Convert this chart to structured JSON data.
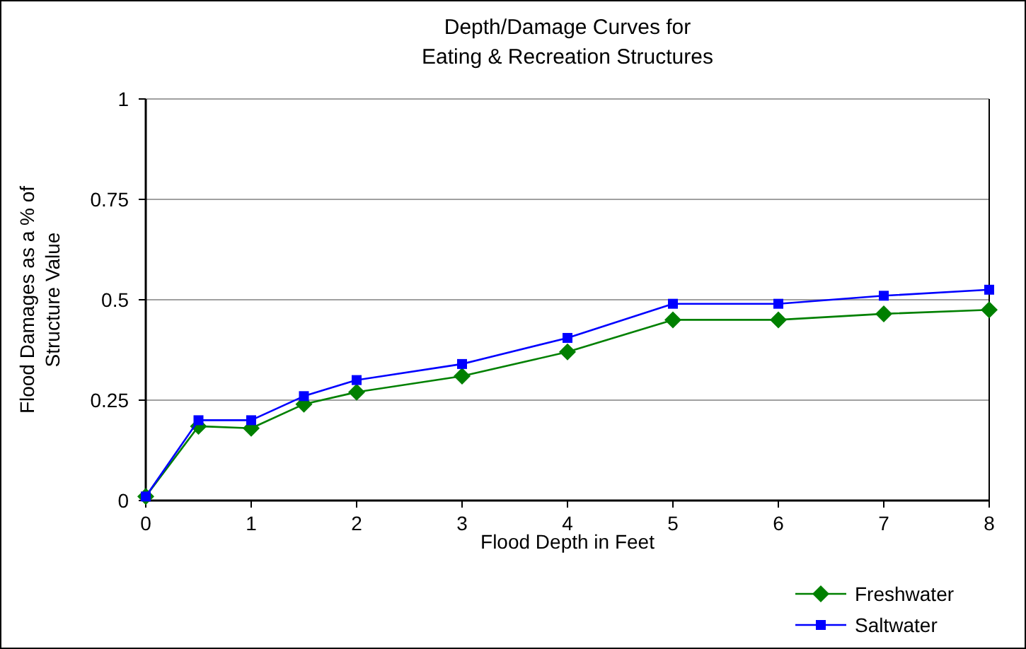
{
  "chart_data": {
    "type": "line",
    "title": "Depth/Damage Curves for\nEating & Recreation Structures",
    "xlabel": "Flood Depth in Feet",
    "ylabel": "Flood Damages as a % of\nStructure Value",
    "x": [
      0,
      0.5,
      1,
      1.5,
      2,
      3,
      4,
      5,
      6,
      7,
      8
    ],
    "series": [
      {
        "name": "Freshwater",
        "color": "#008000",
        "marker": "diamond",
        "values": [
          0.01,
          0.185,
          0.18,
          0.24,
          0.27,
          0.31,
          0.37,
          0.45,
          0.45,
          0.465,
          0.475
        ]
      },
      {
        "name": "Saltwater",
        "color": "#0000ff",
        "marker": "square",
        "values": [
          0.01,
          0.2,
          0.2,
          0.26,
          0.3,
          0.34,
          0.405,
          0.49,
          0.49,
          0.51,
          0.525
        ]
      }
    ],
    "xlim": [
      0,
      8
    ],
    "xticks": [
      0,
      1,
      2,
      3,
      4,
      5,
      6,
      7,
      8
    ],
    "ylim": [
      0,
      1
    ],
    "yticks": [
      0,
      0.25,
      0.5,
      0.75,
      1
    ],
    "grid": "y",
    "legend": "bottom right"
  }
}
